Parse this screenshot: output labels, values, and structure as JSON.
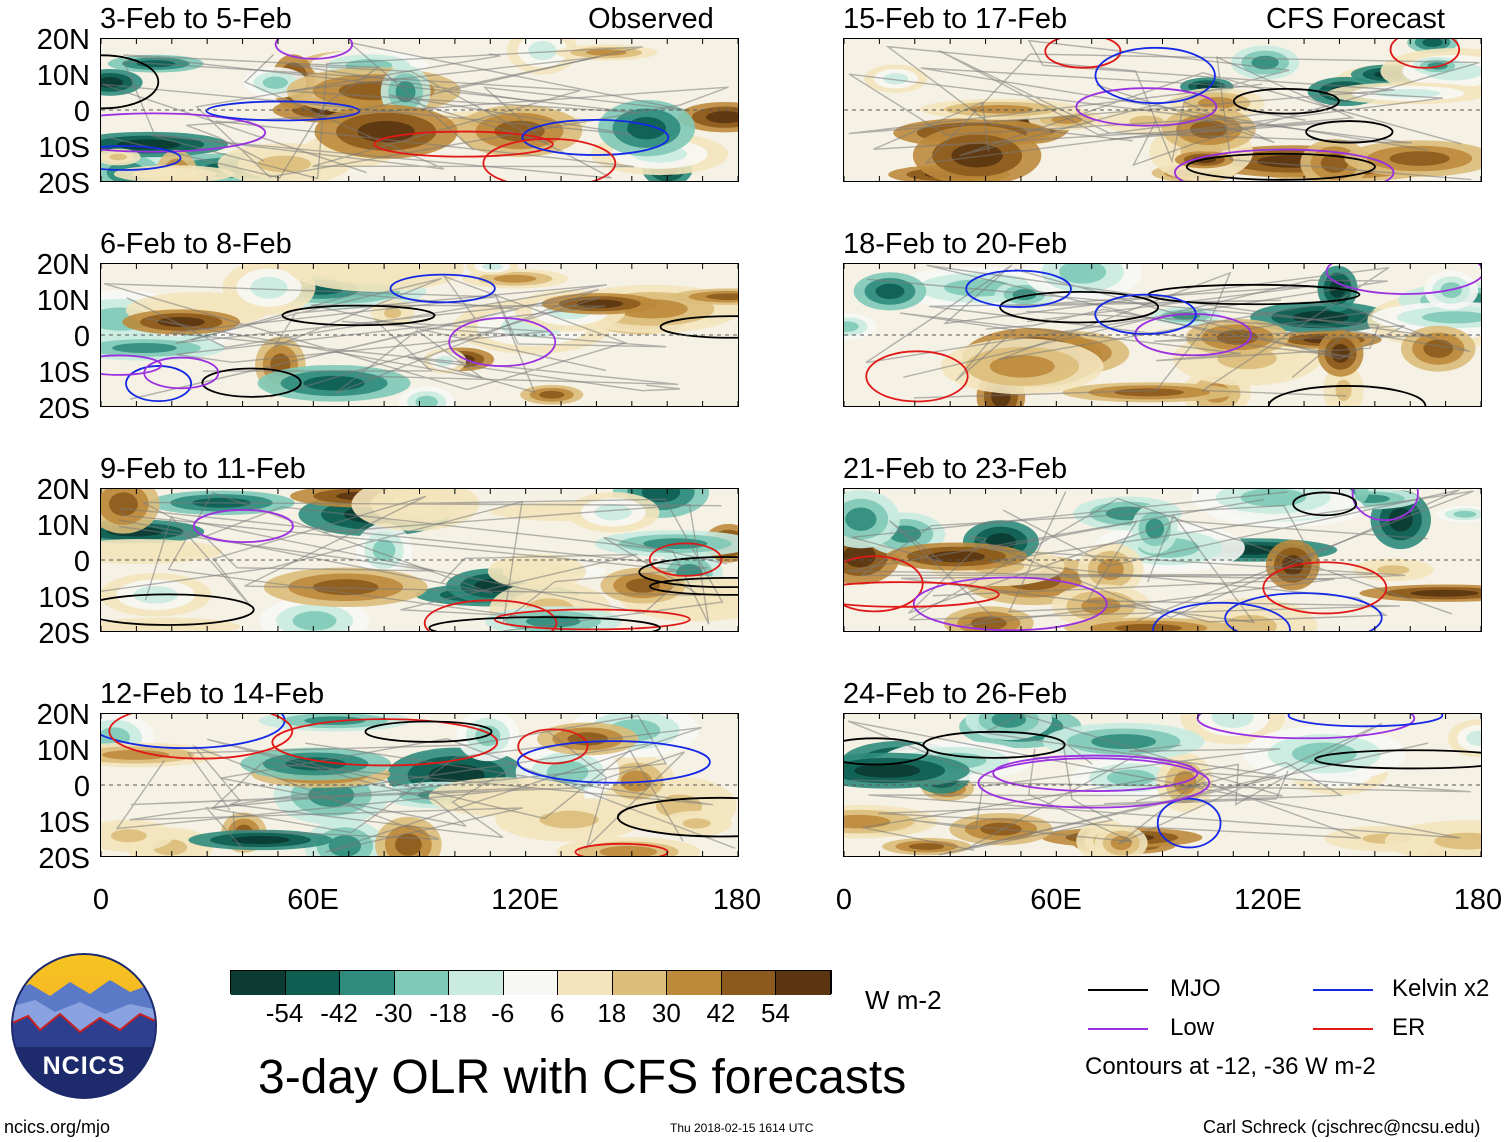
{
  "chart_data": {
    "type": "heatmap",
    "title": "3-day OLR with CFS forecasts",
    "subtitle_left": "Observed",
    "subtitle_right": "CFS Forecast",
    "lat_ticks": [
      "20N",
      "10N",
      "0",
      "10S",
      "20S"
    ],
    "lon_ticks": [
      "0",
      "60E",
      "120E",
      "180"
    ],
    "xlim": [
      0,
      180
    ],
    "ylim": [
      -20,
      20
    ],
    "panels_left": [
      {
        "title": "3-Feb to 5-Feb",
        "corner": "Observed"
      },
      {
        "title": "6-Feb to 8-Feb",
        "corner": ""
      },
      {
        "title": "9-Feb to 11-Feb",
        "corner": ""
      },
      {
        "title": "12-Feb to 14-Feb",
        "corner": ""
      }
    ],
    "panels_right": [
      {
        "title": "15-Feb to 17-Feb",
        "corner": "CFS Forecast"
      },
      {
        "title": "18-Feb to 20-Feb",
        "corner": ""
      },
      {
        "title": "21-Feb to 23-Feb",
        "corner": ""
      },
      {
        "title": "24-Feb to 26-Feb",
        "corner": ""
      }
    ],
    "colorbar": {
      "ticks": [
        "-54",
        "-42",
        "-30",
        "-18",
        "-6",
        "6",
        "18",
        "30",
        "42",
        "54"
      ],
      "colors": [
        "#0b3b33",
        "#0e5e52",
        "#2f8c7c",
        "#7fc9b7",
        "#c9ebe0",
        "#f7f7f4",
        "#f3e4bd",
        "#dcbd7a",
        "#bd8a3c",
        "#8c5a1c",
        "#5a3510"
      ],
      "units": "W m-2"
    },
    "legend": [
      {
        "label": "MJO",
        "color": "#000000"
      },
      {
        "label": "Kelvin x2",
        "color": "#1428e6"
      },
      {
        "label": "Low",
        "color": "#9b30e0"
      },
      {
        "label": "ER",
        "color": "#e01818"
      }
    ],
    "contour_note": "Contours at -12, -36 W m-2"
  },
  "footer": {
    "logo_text": "NCICS",
    "site": "ncics.org/mjo",
    "timestamp": "Thu 2018-02-15 1614 UTC",
    "author": "Carl Schreck (cjschrec@ncsu.edu)"
  }
}
